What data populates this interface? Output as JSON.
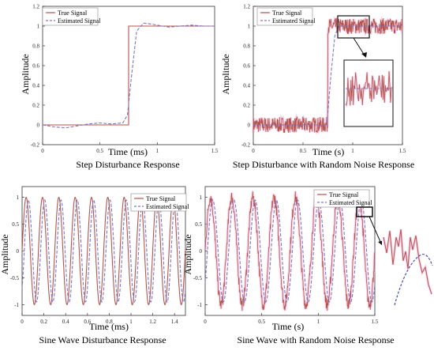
{
  "figure": {
    "panels": [
      {
        "caption": "Step Disturbance Response",
        "xlabel": "Time (ms)",
        "ylabel": "Amplitude",
        "legend": [
          "True Signal",
          "Estimated Signal"
        ]
      },
      {
        "caption": "Step Disturbance with Random Noise Response",
        "xlabel": "Time (s)",
        "ylabel": "Amplitude",
        "legend": [
          "True Signal",
          "Estimated Signal"
        ]
      },
      {
        "caption": "Sine Wave Disturbance Response",
        "xlabel": "Time (ms)",
        "ylabel": "Amplitude",
        "legend": [
          "True Signal",
          "Estimated Signal"
        ]
      },
      {
        "caption": "Sine Wave with Random Noise Response",
        "xlabel": "Time (s)",
        "ylabel": "Amplitude",
        "legend": [
          "True Signal",
          "Estimated Signal"
        ]
      }
    ]
  },
  "colors": {
    "true_signal": "#b5544a",
    "estimated_signal": "#7a77c9",
    "noise_band": "#f2a3d8",
    "zoom_box": "#111111"
  },
  "chart_data": [
    {
      "type": "line",
      "caption": "Step Disturbance Response",
      "xlabel": "Time (ms)",
      "ylabel": "Amplitude",
      "xlim": [
        0,
        1.5
      ],
      "ylim": [
        -0.2,
        1.2
      ],
      "xticks": [
        "0",
        "0.5",
        "1",
        "1.5"
      ],
      "yticks": [
        "-0.2",
        "0",
        "0.2",
        "0.4",
        "0.6",
        "0.8",
        "1",
        "1.2"
      ],
      "legend_position": "top-left",
      "series": [
        {
          "name": "True Signal",
          "style": "solid",
          "x": [
            0,
            0.75,
            0.75,
            1.5
          ],
          "y": [
            0,
            0,
            1,
            1
          ]
        },
        {
          "name": "Estimated Signal",
          "style": "dashed",
          "x": [
            0,
            0.1,
            0.2,
            0.3,
            0.4,
            0.5,
            0.6,
            0.7,
            0.74,
            0.78,
            0.82,
            0.88,
            0.95,
            1.0,
            1.1,
            1.2,
            1.3,
            1.4,
            1.5
          ],
          "y": [
            0,
            -0.02,
            -0.03,
            -0.01,
            0.01,
            0.02,
            0.01,
            0.02,
            0.1,
            0.55,
            0.95,
            1.03,
            1.02,
            1.01,
            0.99,
            1.0,
            1.01,
            1.0,
            1.0
          ]
        }
      ]
    },
    {
      "type": "line",
      "caption": "Step Disturbance with Random Noise Response",
      "xlabel": "Time (s)",
      "ylabel": "Amplitude",
      "xlim": [
        0,
        1.5
      ],
      "ylim": [
        -0.2,
        1.2
      ],
      "xticks": [
        "0",
        "0.5",
        "1",
        "1.5"
      ],
      "yticks": [
        "-0.2",
        "0",
        "0.2",
        "0.4",
        "0.6",
        "0.8",
        "1",
        "1.2"
      ],
      "legend_position": "top-left",
      "noise_amplitude": 0.08,
      "series": [
        {
          "name": "True Signal",
          "style": "solid-noisy",
          "x": [
            0,
            0.75,
            0.75,
            1.5
          ],
          "y": [
            0,
            0,
            1,
            1
          ]
        },
        {
          "name": "Estimated Signal",
          "style": "dashed",
          "x": [
            0,
            0.74,
            0.78,
            0.82,
            0.86,
            1.5
          ],
          "y": [
            0,
            0,
            0.5,
            0.9,
            1.0,
            1.0
          ]
        }
      ]
    },
    {
      "type": "line",
      "caption": "Sine Wave Disturbance Response",
      "xlabel": "Time (ms)",
      "ylabel": "Amplitude",
      "xlim": [
        0,
        1.5
      ],
      "ylim": [
        -1.2,
        1.2
      ],
      "xticks": [
        "0",
        "0.2",
        "0.4",
        "0.6",
        "0.8",
        "1",
        "1.2",
        "1.4"
      ],
      "yticks": [
        "-1",
        "-0.5",
        "0",
        "0.5",
        "1"
      ],
      "legend_position": "top-right",
      "series": [
        {
          "name": "True Signal",
          "style": "solid",
          "function": "sin",
          "amplitude": 1,
          "frequency": 6.67,
          "phase_shift": 0
        },
        {
          "name": "Estimated Signal",
          "style": "dashed",
          "function": "sin",
          "amplitude": 0.95,
          "frequency": 6.67,
          "phase_shift": 0.02
        }
      ]
    },
    {
      "type": "line",
      "caption": "Sine Wave with Random Noise Response",
      "xlabel": "Time (s)",
      "ylabel": "Amplitude",
      "xlim": [
        0,
        1.5
      ],
      "ylim": [
        -1.2,
        1.2
      ],
      "xticks": [
        "0",
        "0.5",
        "1",
        "1.5"
      ],
      "yticks": [
        "-1",
        "-0.5",
        "0",
        "0.5",
        "1"
      ],
      "legend_position": "top-right",
      "noise_amplitude": 0.12,
      "series": [
        {
          "name": "True Signal",
          "style": "solid-noisy",
          "function": "sin",
          "amplitude": 1,
          "frequency": 5.33,
          "phase_shift": 0
        },
        {
          "name": "Estimated Signal",
          "style": "dashed",
          "function": "sin",
          "amplitude": 0.95,
          "frequency": 5.33,
          "phase_shift": 0.02
        }
      ]
    }
  ]
}
